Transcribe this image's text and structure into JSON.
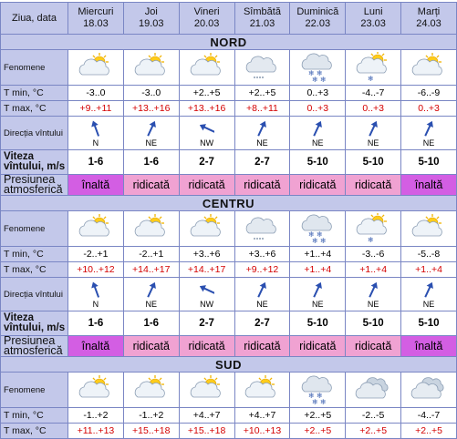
{
  "header": {
    "label": "Ziua, data",
    "days": [
      {
        "name": "Miercuri",
        "date": "18.03"
      },
      {
        "name": "Joi",
        "date": "19.03"
      },
      {
        "name": "Vineri",
        "date": "20.03"
      },
      {
        "name": "Sîmbătă",
        "date": "21.03"
      },
      {
        "name": "Duminică",
        "date": "22.03"
      },
      {
        "name": "Luni",
        "date": "23.03"
      },
      {
        "name": "Marți",
        "date": "24.03"
      }
    ]
  },
  "row_labels": {
    "fenomene": "Fenomene",
    "tmin": "T min, °C",
    "tmax": "T max, °C",
    "directia": "Direcția vîntului",
    "viteza": "Viteza vîntului, m/s",
    "presiunea": "Presiunea atmosferică"
  },
  "colors": {
    "header_bg": "#c3c8ea",
    "border": "#7a86c4",
    "tmax_red": "#d40000",
    "pressure_high": "#d35ee3",
    "pressure_raised": "#f0a2d2"
  },
  "regions": [
    {
      "name": "NORD",
      "fenomene": [
        "partly-cloudy-icon",
        "partly-cloudy-icon",
        "partly-cloudy-icon",
        "cloudy-light-snow-icon",
        "snow-cloud-icon",
        "partly-cloudy-snow-icon",
        "partly-cloudy-icon"
      ],
      "tmin": [
        "-3..0",
        "-3..0",
        "+2..+5",
        "+2..+5",
        "0..+3",
        "-4..-7",
        "-6..-9"
      ],
      "tmax": [
        "+9..+11",
        "+13..+16",
        "+13..+16",
        "+8..+11",
        "0..+3",
        "0..+3",
        "0..+3"
      ],
      "wind_dir": [
        "N",
        "NE",
        "NW",
        "NE",
        "NE",
        "NE",
        "NE"
      ],
      "wind_speed": [
        "1-6",
        "1-6",
        "2-7",
        "2-7",
        "5-10",
        "5-10",
        "5-10"
      ],
      "pressure": [
        "înaltă",
        "ridicată",
        "ridicată",
        "ridicată",
        "ridicată",
        "ridicată",
        "înaltă"
      ]
    },
    {
      "name": "CENTRU",
      "fenomene": [
        "partly-cloudy-icon",
        "partly-cloudy-icon",
        "partly-cloudy-icon",
        "cloudy-light-snow-icon",
        "snow-cloud-icon",
        "partly-cloudy-snow-icon",
        "partly-cloudy-icon"
      ],
      "tmin": [
        "-2..+1",
        "-2..+1",
        "+3..+6",
        "+3..+6",
        "+1..+4",
        "-3..-6",
        "-5..-8"
      ],
      "tmax": [
        "+10..+12",
        "+14..+17",
        "+14..+17",
        "+9..+12",
        "+1..+4",
        "+1..+4",
        "+1..+4"
      ],
      "wind_dir": [
        "N",
        "NE",
        "NW",
        "NE",
        "NE",
        "NE",
        "NE"
      ],
      "wind_speed": [
        "1-6",
        "1-6",
        "2-7",
        "2-7",
        "5-10",
        "5-10",
        "5-10"
      ],
      "pressure": [
        "înaltă",
        "ridicată",
        "ridicată",
        "ridicată",
        "ridicată",
        "ridicată",
        "înaltă"
      ]
    },
    {
      "name": "SUD",
      "fenomene": [
        "partly-cloudy-icon",
        "partly-cloudy-icon",
        "partly-cloudy-icon",
        "partly-cloudy-icon",
        "snow-cloud-icon",
        "cloudy-icon",
        "cloudy-icon"
      ],
      "tmin": [
        "-1..+2",
        "-1..+2",
        "+4..+7",
        "+4..+7",
        "+2..+5",
        "-2..-5",
        "-4..-7"
      ],
      "tmax": [
        "+11..+13",
        "+15..+18",
        "+15..+18",
        "+10..+13",
        "+2..+5",
        "+2..+5",
        "+2..+5"
      ]
    }
  ]
}
